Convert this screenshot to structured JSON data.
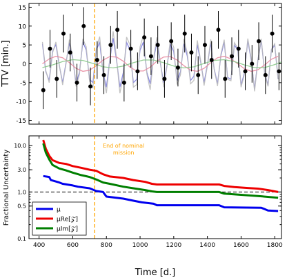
{
  "chart_data": [
    {
      "type": "scatter",
      "xlim": [
        340,
        1840
      ],
      "ylim": [
        -16,
        16
      ],
      "ylabel": "TTV [min.]",
      "xticks": [
        400,
        600,
        800,
        1000,
        1200,
        1400,
        1600,
        1800
      ],
      "yticks": [
        -15,
        -10,
        -5,
        0,
        5,
        10,
        15
      ],
      "grid": false,
      "reference_line": {
        "x": 730,
        "style": "dashed",
        "color": "#ffa500"
      },
      "series": [
        {
          "kind": "points_with_errorbars",
          "color": "#000000",
          "x": [
            425,
            465,
            505,
            545,
            585,
            625,
            665,
            705,
            745,
            785,
            825,
            865,
            905,
            945,
            985,
            1025,
            1065,
            1105,
            1145,
            1185,
            1225,
            1265,
            1305,
            1345,
            1385,
            1425,
            1465,
            1505,
            1545,
            1585,
            1625,
            1665,
            1705,
            1745,
            1785,
            1825
          ],
          "y": [
            -7,
            4,
            -4,
            8,
            3,
            -5,
            10,
            -6,
            1,
            -3,
            5,
            9,
            -5,
            4,
            -2,
            7,
            2,
            5,
            -4,
            6,
            -1,
            8,
            3,
            -3,
            5,
            1,
            9,
            -4,
            2,
            4,
            -2,
            0,
            6,
            -3,
            8,
            -2
          ],
          "yerr": 5
        },
        {
          "kind": "model_line",
          "color": "#7b7be0",
          "x": [
            420,
            440,
            460,
            480,
            500,
            520,
            540,
            560,
            580,
            600,
            620,
            640,
            660,
            680,
            700,
            720,
            740,
            760,
            780,
            800,
            820,
            840,
            860,
            880,
            900,
            920,
            940,
            960,
            980,
            1000,
            1020,
            1040,
            1060,
            1080,
            1100,
            1120,
            1140,
            1160,
            1180,
            1200,
            1220,
            1240,
            1260,
            1280,
            1300,
            1320,
            1340,
            1360,
            1380,
            1400,
            1420,
            1440,
            1460,
            1480,
            1500,
            1520,
            1540,
            1560,
            1580,
            1600,
            1620,
            1640,
            1660,
            1680,
            1700,
            1720,
            1740,
            1760,
            1780,
            1800,
            1820
          ],
          "y": [
            5.3,
            -2.1,
            -4.4,
            3.3,
            5.1,
            -0.4,
            -5.0,
            0.3,
            5.6,
            1.3,
            -5.3,
            -2.2,
            5.8,
            3.6,
            -4.1,
            -5.0,
            3.7,
            5.7,
            -2.4,
            -6.2,
            1.0,
            6.8,
            1.0,
            -6.2,
            -2.4,
            5.7,
            3.7,
            -5.0,
            -4.1,
            3.6,
            5.8,
            -2.2,
            -5.3,
            1.3,
            5.6,
            0.3,
            -5.0,
            -0.4,
            5.1,
            3.3,
            -4.4,
            -2.1,
            5.3,
            2.1,
            -4.4,
            -3.3,
            5.1,
            0.4,
            -5.0,
            -0.3,
            5.6,
            -1.3,
            -5.3,
            2.2,
            5.8,
            -3.6,
            -4.1,
            5.0,
            3.7,
            -5.7,
            -2.4,
            6.2,
            1.0,
            -6.8,
            1.0,
            6.2,
            -2.4,
            -5.7,
            3.7,
            5.0,
            -4.1
          ]
        },
        {
          "kind": "model_line",
          "color": "#bbbbbb",
          "x": [
            420,
            440,
            460,
            480,
            500,
            520,
            540,
            560,
            580,
            600,
            620,
            640,
            660,
            680,
            700,
            720,
            740,
            760,
            780,
            800,
            820,
            840,
            860,
            880,
            900,
            920,
            940,
            960,
            980,
            1000,
            1020,
            1040,
            1060,
            1080,
            1100,
            1120,
            1140,
            1160,
            1180,
            1200,
            1220,
            1240,
            1260,
            1280,
            1300,
            1320,
            1340,
            1360,
            1380,
            1400,
            1420,
            1440,
            1460,
            1480,
            1500,
            1520,
            1540,
            1560,
            1580,
            1600,
            1620,
            1640,
            1660,
            1680,
            1700,
            1720,
            1740,
            1760,
            1780,
            1800,
            1820
          ],
          "y": [
            5.8,
            -1.8,
            -5.0,
            2.9,
            5.8,
            -0.2,
            -5.6,
            0.0,
            6.4,
            1.7,
            -6.0,
            -2.8,
            6.6,
            4.5,
            -4.6,
            -6.3,
            4.0,
            7.2,
            -2.5,
            -7.8,
            0.8,
            8.6,
            1.5,
            -7.8,
            -3.3,
            7.1,
            5.0,
            -6.2,
            -5.5,
            4.5,
            7.6,
            -2.6,
            -6.9,
            1.5,
            7.0,
            0.7,
            -6.2,
            -0.7,
            6.4,
            4.4,
            -5.5,
            -2.9,
            6.6,
            2.9,
            -5.3,
            -4.4,
            6.2,
            0.8,
            -5.8,
            -0.6,
            6.5,
            -1.5,
            -5.9,
            2.6,
            6.4,
            -4.1,
            -4.5,
            5.6,
            4.2,
            -6.2,
            -2.8,
            6.7,
            1.4,
            -7.3,
            0.8,
            6.6,
            -2.5,
            -6.0,
            3.8,
            5.3,
            -4.1
          ]
        },
        {
          "kind": "model_line",
          "color": "#e88aa0",
          "x": [
            420,
            460,
            500,
            540,
            580,
            620,
            660,
            700,
            740,
            780,
            820,
            860,
            900,
            940,
            980,
            1020,
            1060,
            1100,
            1140,
            1180,
            1220,
            1260,
            1300,
            1340,
            1380,
            1420,
            1460,
            1500,
            1540,
            1580,
            1620,
            1660,
            1700,
            1740,
            1780,
            1820
          ],
          "y": [
            0.0,
            1.3,
            2.0,
            1.6,
            0.3,
            -1.2,
            -2.0,
            -1.7,
            -0.5,
            1.0,
            1.9,
            1.8,
            0.7,
            -0.9,
            -1.9,
            -1.9,
            -0.9,
            0.7,
            1.8,
            1.9,
            1.0,
            -0.5,
            -1.7,
            -2.0,
            -1.2,
            0.3,
            1.6,
            2.0,
            1.3,
            0.0,
            -1.3,
            -2.0,
            -1.6,
            -0.3,
            1.2,
            2.0
          ]
        },
        {
          "kind": "model_line",
          "color": "#88c888",
          "x": [
            420,
            480,
            540,
            600,
            660,
            720,
            780,
            840,
            900,
            960,
            1020,
            1080,
            1140,
            1200,
            1260,
            1320,
            1380,
            1440,
            1500,
            1560,
            1620,
            1680,
            1740,
            1800,
            1840
          ],
          "y": [
            -1.0,
            -0.3,
            0.6,
            1.1,
            0.9,
            0.1,
            -0.8,
            -1.1,
            -0.6,
            0.3,
            1.0,
            1.0,
            0.3,
            -0.6,
            -1.1,
            -0.8,
            0.1,
            0.9,
            1.1,
            0.6,
            -0.3,
            -1.0,
            -1.0,
            -0.2,
            0.5
          ]
        }
      ]
    },
    {
      "type": "line",
      "xlim": [
        340,
        1840
      ],
      "ylim": [
        0.1,
        16
      ],
      "yscale": "log",
      "xlabel": "Time [d.]",
      "ylabel": "Fractional Uncertainty",
      "xticks": [
        400,
        600,
        800,
        1000,
        1200,
        1400,
        1600,
        1800
      ],
      "ytick_labels": [
        "0.1",
        "0.5",
        "1.0",
        "3.0",
        "10.0"
      ],
      "ytick_values": [
        0.1,
        0.5,
        1.0,
        3.0,
        10.0
      ],
      "grid": false,
      "reference_lines": [
        {
          "x": 730,
          "style": "dashed",
          "color": "#ffa500"
        },
        {
          "y": 1.0,
          "style": "dashed",
          "color": "#000000"
        }
      ],
      "annotation": "End of nominal\nmission",
      "legend": {
        "placement": "bottom-left"
      },
      "series": [
        {
          "name": "μ",
          "color": "#0000ee",
          "x": [
            425,
            460,
            470,
            520,
            540,
            600,
            630,
            700,
            740,
            780,
            800,
            900,
            960,
            1010,
            1080,
            1100,
            1470,
            1500,
            1720,
            1760,
            1820
          ],
          "y": [
            2.2,
            2.1,
            1.8,
            1.6,
            1.5,
            1.38,
            1.3,
            1.2,
            1.05,
            1.0,
            0.8,
            0.72,
            0.65,
            0.6,
            0.56,
            0.52,
            0.52,
            0.47,
            0.46,
            0.4,
            0.39
          ]
        },
        {
          "name": "μRe[𝒵]",
          "color": "#ee0000",
          "x": [
            425,
            440,
            460,
            480,
            520,
            560,
            600,
            650,
            700,
            740,
            780,
            820,
            900,
            960,
            1030,
            1070,
            1100,
            1470,
            1500,
            1560,
            1640,
            1700,
            1760,
            1800,
            1820
          ],
          "y": [
            13.0,
            8.5,
            6.0,
            4.8,
            4.2,
            4.0,
            3.6,
            3.3,
            3.0,
            2.85,
            2.4,
            2.15,
            2.0,
            1.8,
            1.65,
            1.5,
            1.45,
            1.45,
            1.35,
            1.28,
            1.22,
            1.18,
            1.1,
            1.03,
            1.0
          ]
        },
        {
          "name": "μIm[𝒵]",
          "color": "#007f00",
          "x": [
            425,
            440,
            460,
            480,
            520,
            560,
            600,
            650,
            700,
            740,
            780,
            820,
            900,
            960,
            1030,
            1070,
            1100,
            1470,
            1500,
            1600,
            1700,
            1820
          ],
          "y": [
            11.0,
            7.0,
            5.0,
            3.8,
            3.2,
            2.9,
            2.6,
            2.3,
            2.1,
            1.85,
            1.6,
            1.5,
            1.3,
            1.2,
            1.1,
            1.03,
            1.0,
            1.0,
            0.92,
            0.87,
            0.82,
            0.75
          ]
        }
      ]
    }
  ]
}
